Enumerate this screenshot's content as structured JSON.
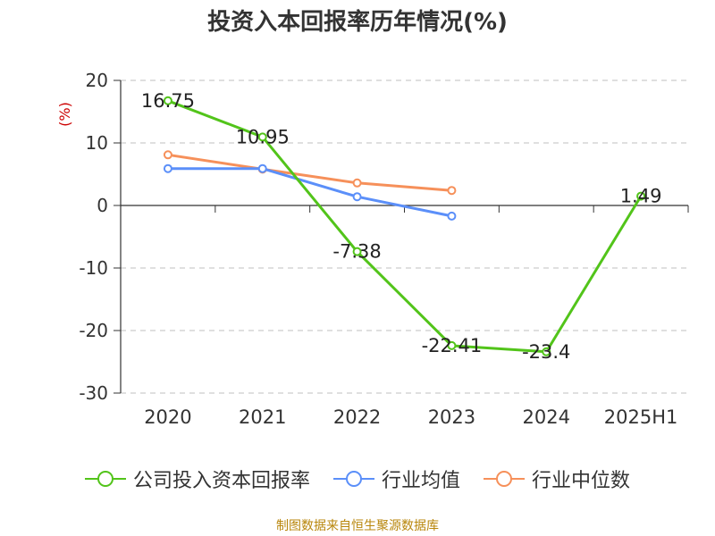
{
  "chart_data": {
    "type": "line",
    "title": "投资入本回报率历年情况(%)",
    "categories": [
      "2020",
      "2021",
      "2022",
      "2023",
      "2024",
      "2025H1"
    ],
    "ylabel": "(%)",
    "ylim": [
      -30,
      20
    ],
    "yticks": [
      -30,
      -20,
      -10,
      0,
      10,
      20
    ],
    "grid": true,
    "legend_position": "bottom",
    "series": [
      {
        "name": "公司投入资本回报率",
        "color": "#52c41a",
        "values": [
          16.75,
          10.95,
          -7.38,
          -22.41,
          -23.4,
          1.49
        ],
        "labels": [
          "16.75",
          "10.95",
          "-7.38",
          "-22.41",
          "-23.4",
          "1.49"
        ]
      },
      {
        "name": "行业均值",
        "color": "#5b8ff9",
        "values": [
          5.9,
          5.9,
          1.4,
          -1.7,
          null,
          null
        ]
      },
      {
        "name": "行业中位数",
        "color": "#f6905a",
        "values": [
          8.1,
          5.8,
          3.6,
          2.4,
          null,
          null
        ]
      }
    ]
  },
  "source": "制图数据来自恒生聚源数据库"
}
